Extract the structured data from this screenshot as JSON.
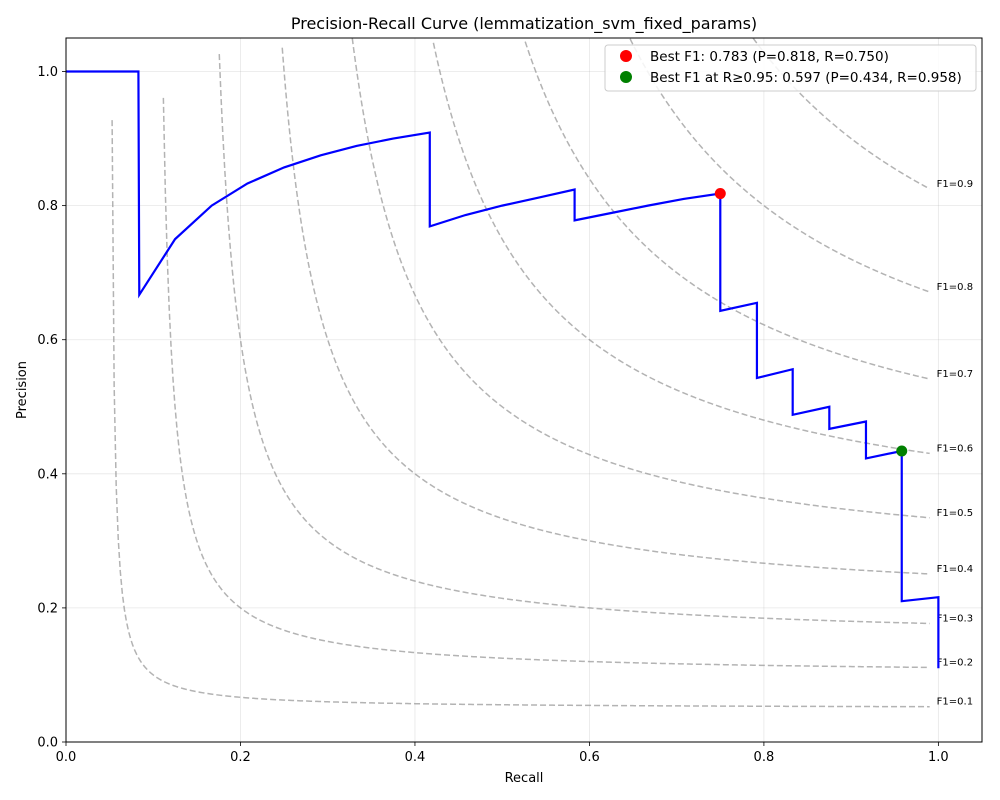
{
  "chart_data": {
    "type": "line",
    "title": "Precision-Recall Curve (lemmatization_svm_fixed_params)",
    "xlabel": "Recall",
    "ylabel": "Precision",
    "xlim": [
      0.0,
      1.05
    ],
    "ylim": [
      0.0,
      1.05
    ],
    "xticks": [
      "0.0",
      "0.2",
      "0.4",
      "0.6",
      "0.8",
      "1.0"
    ],
    "yticks": [
      "0.0",
      "0.2",
      "0.4",
      "0.6",
      "0.8",
      "1.0"
    ],
    "grid": true,
    "legend_position": "top-right",
    "colors": {
      "curve": "#0000ff",
      "best_f1": "#ff0000",
      "best_f1_recall": "#008000",
      "iso_f1": "#999999"
    },
    "series": [
      {
        "name": "",
        "x": [
          0.0,
          0.083,
          0.084,
          0.125,
          0.167,
          0.208,
          0.25,
          0.292,
          0.333,
          0.375,
          0.417,
          0.417,
          0.458,
          0.5,
          0.542,
          0.583,
          0.583,
          0.625,
          0.667,
          0.708,
          0.75,
          0.75,
          0.792,
          0.792,
          0.833,
          0.833,
          0.875,
          0.875,
          0.917,
          0.917,
          0.958,
          0.958,
          1.0,
          1.0
        ],
        "y": [
          1.0,
          1.0,
          0.667,
          0.75,
          0.8,
          0.833,
          0.857,
          0.875,
          0.889,
          0.9,
          0.909,
          0.769,
          0.786,
          0.8,
          0.812,
          0.824,
          0.778,
          0.789,
          0.8,
          0.81,
          0.818,
          0.643,
          0.655,
          0.543,
          0.556,
          0.488,
          0.5,
          0.467,
          0.478,
          0.423,
          0.434,
          0.21,
          0.216,
          0.11
        ]
      }
    ],
    "points": [
      {
        "name": "Best F1: 0.783 (P=0.818, R=0.750)",
        "x": 0.75,
        "y": 0.818
      },
      {
        "name": "Best F1 at R≥0.95: 0.597 (P=0.434, R=0.958)",
        "x": 0.958,
        "y": 0.434
      }
    ],
    "iso_f1_curves": [
      {
        "label": "F1=0.1",
        "f": 0.1
      },
      {
        "label": "F1=0.2",
        "f": 0.2
      },
      {
        "label": "F1=0.3",
        "f": 0.3
      },
      {
        "label": "F1=0.4",
        "f": 0.4
      },
      {
        "label": "F1=0.5",
        "f": 0.5
      },
      {
        "label": "F1=0.6",
        "f": 0.6
      },
      {
        "label": "F1=0.7",
        "f": 0.7
      },
      {
        "label": "F1=0.8",
        "f": 0.8
      },
      {
        "label": "F1=0.9",
        "f": 0.9
      }
    ]
  }
}
